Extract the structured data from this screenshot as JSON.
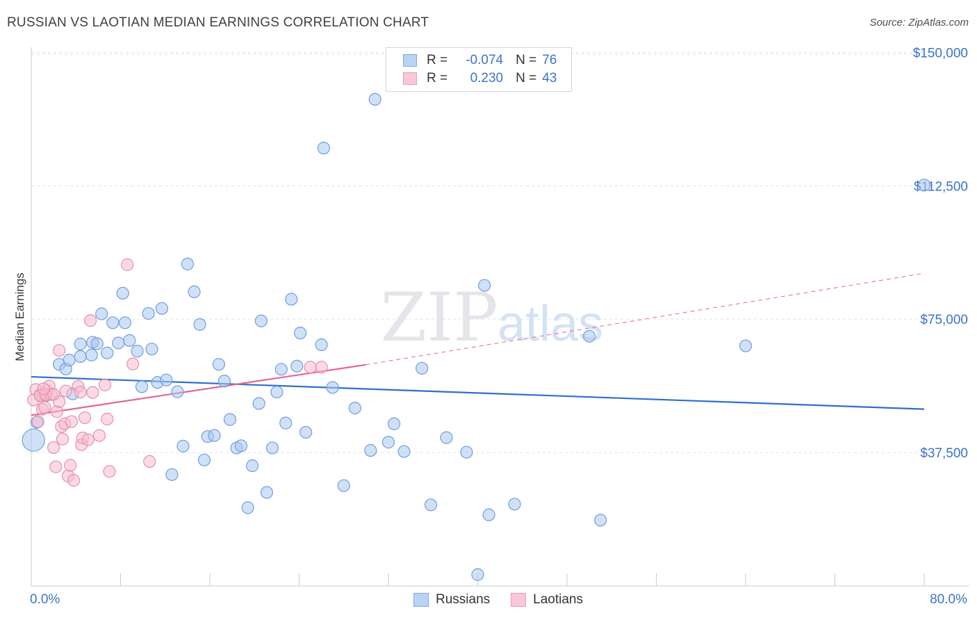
{
  "title": "RUSSIAN VS LAOTIAN MEDIAN EARNINGS CORRELATION CHART",
  "source": "Source: ZipAtlas.com",
  "watermark": {
    "zip": "ZIP",
    "atlas": "atlas"
  },
  "stats": [
    {
      "r_label": "R =",
      "r_value": "-0.074",
      "n_label": "N =",
      "n_value": "76"
    },
    {
      "r_label": "R =",
      "r_value": "0.230",
      "n_label": "N =",
      "n_value": "43"
    }
  ],
  "legend": [
    {
      "label": "Russians"
    },
    {
      "label": "Laotians"
    }
  ],
  "chart_data": {
    "type": "scatter",
    "title": "RUSSIAN VS LAOTIAN MEDIAN EARNINGS CORRELATION CHART",
    "xlabel": "",
    "ylabel": "Median Earnings",
    "x_min_label": "0.0%",
    "x_max_label": "80.0%",
    "xlim": [
      0,
      80
    ],
    "ylim": [
      0,
      153000
    ],
    "yticks": [
      37500,
      75000,
      112500,
      150000
    ],
    "ytick_labels": [
      "$37,500",
      "$75,000",
      "$112,500",
      "$150,000"
    ],
    "grid": true,
    "legend_position": "bottom-center",
    "colors": {
      "russians_fill": "#a9c7ef",
      "russians_stroke": "#6f9fdf",
      "russians_line": "#2f6fcc",
      "laotians_fill": "#f7bcd0",
      "laotians_stroke": "#e78fad",
      "laotians_line": "#e2678f",
      "accent_text": "#3a73cc"
    },
    "series": [
      {
        "name": "Russians",
        "trend": {
          "x": [
            0,
            80
          ],
          "y": [
            58800,
            49700
          ]
        },
        "points": [
          [
            0.2,
            41000
          ],
          [
            0.8,
            53800
          ],
          [
            1.3,
            53500
          ],
          [
            2.5,
            62300
          ],
          [
            3.1,
            61000
          ],
          [
            3.4,
            63500
          ],
          [
            4.4,
            64500
          ],
          [
            4.4,
            68000
          ],
          [
            5.4,
            64900
          ],
          [
            5.5,
            68500
          ],
          [
            5.9,
            68100
          ],
          [
            6.3,
            76500
          ],
          [
            6.8,
            65500
          ],
          [
            7.3,
            74000
          ],
          [
            7.8,
            68300
          ],
          [
            8.2,
            82300
          ],
          [
            8.4,
            74000
          ],
          [
            8.8,
            69000
          ],
          [
            9.5,
            66000
          ],
          [
            9.9,
            56000
          ],
          [
            10.5,
            76600
          ],
          [
            10.8,
            66600
          ],
          [
            11.3,
            57200
          ],
          [
            11.7,
            78000
          ],
          [
            12.1,
            57900
          ],
          [
            12.6,
            31300
          ],
          [
            13.1,
            54600
          ],
          [
            13.6,
            39300
          ],
          [
            14.0,
            90500
          ],
          [
            14.6,
            82700
          ],
          [
            15.1,
            73500
          ],
          [
            15.5,
            35400
          ],
          [
            15.8,
            42000
          ],
          [
            16.4,
            42300
          ],
          [
            16.8,
            62300
          ],
          [
            17.3,
            57600
          ],
          [
            17.8,
            46800
          ],
          [
            18.4,
            38800
          ],
          [
            18.8,
            39400
          ],
          [
            19.4,
            22000
          ],
          [
            19.8,
            33800
          ],
          [
            20.4,
            51300
          ],
          [
            20.6,
            74500
          ],
          [
            21.1,
            26300
          ],
          [
            21.6,
            38800
          ],
          [
            22.0,
            54500
          ],
          [
            22.4,
            60900
          ],
          [
            22.8,
            45800
          ],
          [
            23.3,
            80600
          ],
          [
            23.8,
            61800
          ],
          [
            24.1,
            71100
          ],
          [
            24.6,
            43200
          ],
          [
            26.0,
            67800
          ],
          [
            26.2,
            123100
          ],
          [
            27.0,
            55800
          ],
          [
            28.0,
            28200
          ],
          [
            29.0,
            50000
          ],
          [
            30.4,
            38100
          ],
          [
            30.8,
            136800
          ],
          [
            32.0,
            40400
          ],
          [
            32.5,
            45600
          ],
          [
            33.4,
            37800
          ],
          [
            35.0,
            61200
          ],
          [
            35.8,
            22800
          ],
          [
            37.2,
            41700
          ],
          [
            39.0,
            37600
          ],
          [
            40.0,
            3200
          ],
          [
            40.6,
            84500
          ],
          [
            41.0,
            20000
          ],
          [
            43.3,
            23000
          ],
          [
            50.0,
            70200
          ],
          [
            51.0,
            18500
          ],
          [
            64.0,
            67500
          ],
          [
            80.0,
            112700
          ],
          [
            3.7,
            54000
          ],
          [
            0.5,
            46000
          ]
        ]
      },
      {
        "name": "Laotians",
        "trend": {
          "x": [
            0,
            30
          ],
          "y": [
            48000,
            62200
          ]
        },
        "trend_dashed": {
          "x": [
            30,
            80
          ],
          "y": [
            62200,
            87900
          ]
        },
        "points": [
          [
            0.2,
            52300
          ],
          [
            0.4,
            55200
          ],
          [
            0.6,
            46200
          ],
          [
            0.8,
            53600
          ],
          [
            1.0,
            49700
          ],
          [
            1.2,
            50200
          ],
          [
            1.4,
            54900
          ],
          [
            1.6,
            56200
          ],
          [
            1.8,
            53800
          ],
          [
            2.0,
            38900
          ],
          [
            2.2,
            33500
          ],
          [
            2.3,
            49000
          ],
          [
            2.5,
            51800
          ],
          [
            2.5,
            66200
          ],
          [
            2.7,
            44800
          ],
          [
            2.8,
            41300
          ],
          [
            3.0,
            45600
          ],
          [
            3.1,
            54800
          ],
          [
            3.3,
            30900
          ],
          [
            3.5,
            33900
          ],
          [
            3.6,
            46200
          ],
          [
            3.8,
            29700
          ],
          [
            4.2,
            56100
          ],
          [
            4.4,
            54500
          ],
          [
            4.5,
            39700
          ],
          [
            4.6,
            41600
          ],
          [
            4.8,
            47300
          ],
          [
            5.1,
            41100
          ],
          [
            5.3,
            74600
          ],
          [
            5.5,
            54400
          ],
          [
            6.1,
            42300
          ],
          [
            6.6,
            56500
          ],
          [
            6.8,
            46900
          ],
          [
            7.0,
            32200
          ],
          [
            8.6,
            90300
          ],
          [
            9.1,
            62400
          ],
          [
            10.6,
            35000
          ],
          [
            25.0,
            61500
          ],
          [
            26.0,
            61500
          ],
          [
            0.8,
            53500
          ],
          [
            1.3,
            53800
          ],
          [
            1.1,
            55400
          ],
          [
            2.0,
            53900
          ]
        ]
      }
    ]
  }
}
